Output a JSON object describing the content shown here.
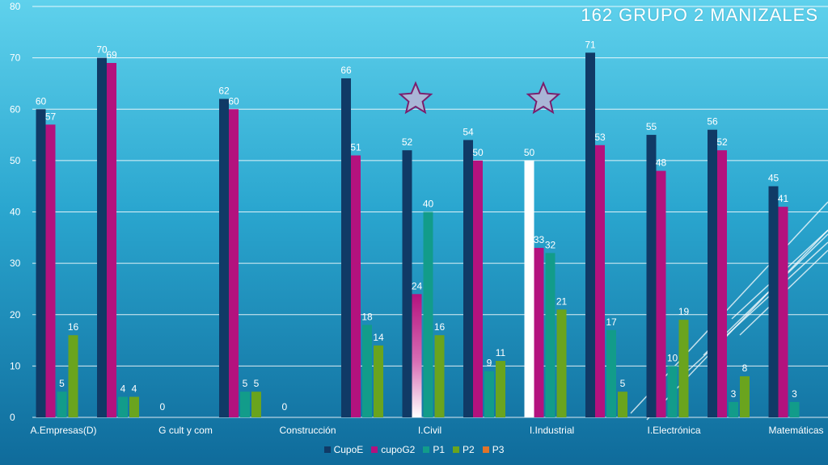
{
  "chart_data": {
    "type": "bar",
    "title": "162  GRUPO 2  MANIZALES",
    "categories": [
      "A.Empresas(D)",
      "",
      "G cult y com",
      "",
      "Construcción",
      "",
      "I.Civil",
      "",
      "I.Industrial",
      "",
      "I.Electrónica",
      "",
      "Matemáticas"
    ],
    "series": [
      {
        "name": "CupoE",
        "color": "#103a66",
        "values": [
          60,
          70,
          0,
          62,
          0,
          66,
          52,
          54,
          50,
          71,
          55,
          56,
          45
        ]
      },
      {
        "name": "cupoG2",
        "color": "#b3127e",
        "values": [
          57,
          69,
          0,
          60,
          0,
          51,
          24,
          50,
          33,
          53,
          48,
          52,
          41
        ]
      },
      {
        "name": "P1",
        "color": "#129c8a",
        "values": [
          5,
          4,
          0,
          5,
          0,
          18,
          40,
          9,
          32,
          17,
          10,
          3,
          3
        ]
      },
      {
        "name": "P2",
        "color": "#6aa41e",
        "values": [
          16,
          4,
          0,
          5,
          0,
          14,
          16,
          11,
          21,
          5,
          19,
          8,
          null
        ]
      },
      {
        "name": "P3",
        "color": "#e0742a",
        "values": [
          null,
          null,
          null,
          null,
          null,
          null,
          null,
          null,
          null,
          null,
          null,
          null,
          null
        ]
      }
    ],
    "group_labels": [
      "",
      "",
      "0",
      "",
      "0",
      "",
      "",
      "",
      "",
      "",
      "",
      "",
      ""
    ],
    "ylim": [
      0,
      80
    ],
    "yticks": [
      0,
      10,
      20,
      30,
      40,
      50,
      60,
      70,
      80
    ],
    "grid": true,
    "legend_position": "bottom",
    "annotations": [
      "star",
      "star"
    ]
  }
}
